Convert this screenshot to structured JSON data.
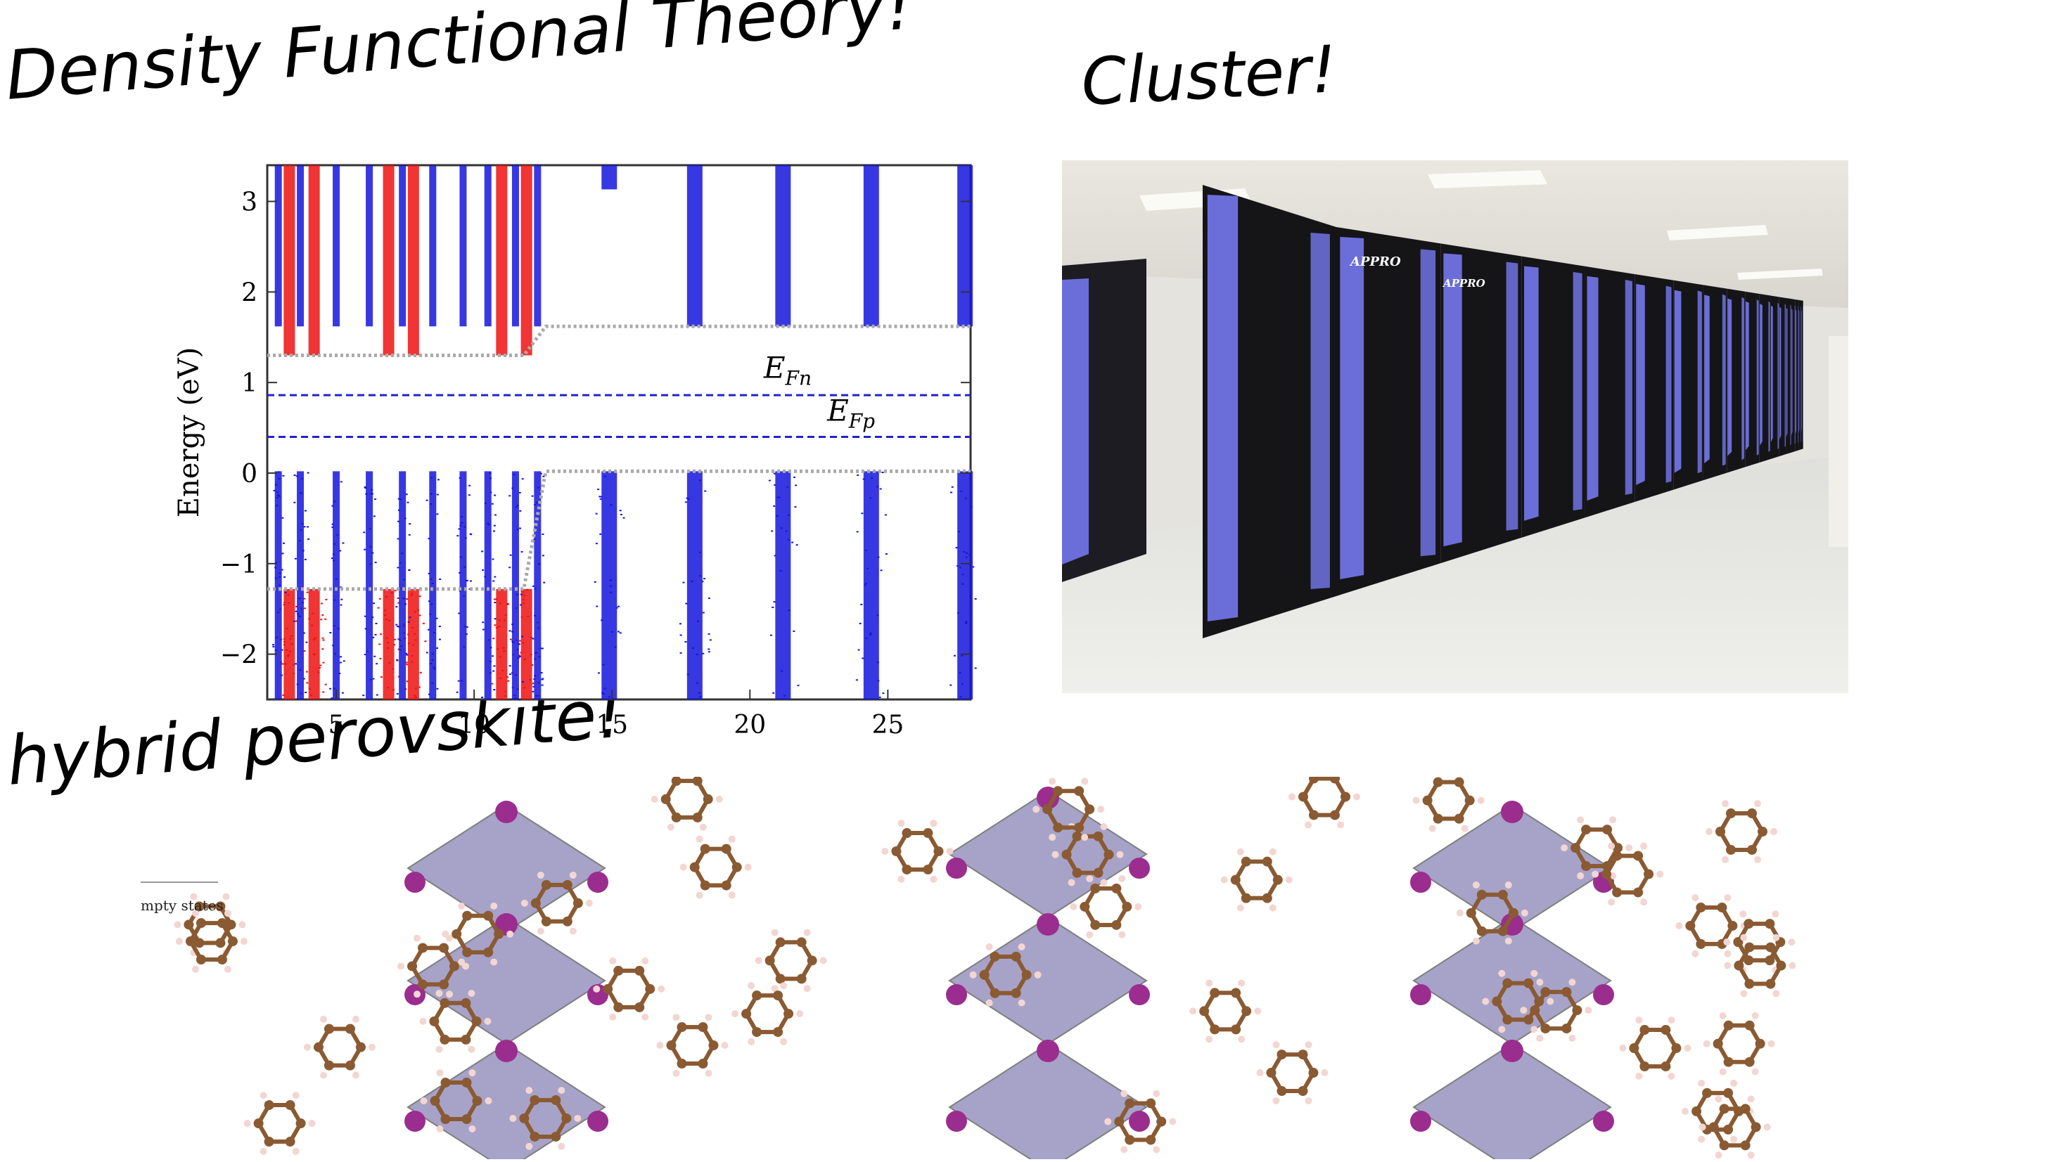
{
  "captions": {
    "dft": "Density Functional Theory!",
    "cluster": "Cluster!",
    "hybrid": "hybrid perovskite!"
  },
  "cluster_photo": {
    "brand_label": "APPRO",
    "rack_color": "#6b6ed8",
    "frame_color": "#151518"
  },
  "structure_fragment": {
    "text": "mpty states",
    "carbon_color": "#8a5a32",
    "iodine_color": "#9b2d8f",
    "octahedron_color": "#8a84b6"
  },
  "chart_data": {
    "type": "scatter",
    "title": "",
    "xlabel": "",
    "ylabel": "Energy (eV)",
    "xlim": [
      2.5,
      28
    ],
    "ylim": [
      -2.5,
      3.4
    ],
    "x_ticks": [
      "5",
      "10",
      "15",
      "20",
      "25"
    ],
    "x_tick_values": [
      5,
      10,
      15,
      20,
      25
    ],
    "y_ticks": [
      "−2",
      "−1",
      "0",
      "1",
      "2",
      "3"
    ],
    "y_tick_values": [
      -2,
      -1,
      0,
      1,
      2,
      3
    ],
    "annotations": [
      {
        "text": "E",
        "sub": "Fn",
        "x": 20.5,
        "y": 1.05
      },
      {
        "text": "E",
        "sub": "Fp",
        "x": 22.8,
        "y": 0.58
      }
    ],
    "fermi_levels": [
      {
        "name": "E_Fn",
        "y": 0.86,
        "color": "#2222cc"
      },
      {
        "name": "E_Fp",
        "y": 0.4,
        "color": "#2222cc"
      }
    ],
    "conduction_band_edge": [
      [
        2.5,
        1.3
      ],
      [
        11.8,
        1.3
      ],
      [
        12.6,
        1.62
      ],
      [
        28,
        1.62
      ]
    ],
    "valence_band_edge": [
      [
        2.5,
        -1.28
      ],
      [
        11.8,
        -1.28
      ],
      [
        12.6,
        0.02
      ],
      [
        28,
        0.02
      ]
    ],
    "series": [
      {
        "name": "red states",
        "color": "#ee1111",
        "columns": [
          3.3,
          4.2,
          6.9,
          7.8,
          11.0,
          11.9
        ],
        "upper_from": 1.3,
        "lower_to": -1.28
      },
      {
        "name": "blue states",
        "color": "#1515dd",
        "columns": [
          2.9,
          3.7,
          5.0,
          6.2,
          7.4,
          8.5,
          9.6,
          10.5,
          11.5,
          12.3,
          14.9,
          18.0,
          21.2,
          24.4,
          27.8
        ],
        "upper_from": 1.62,
        "lower_to": 0.02
      }
    ]
  }
}
